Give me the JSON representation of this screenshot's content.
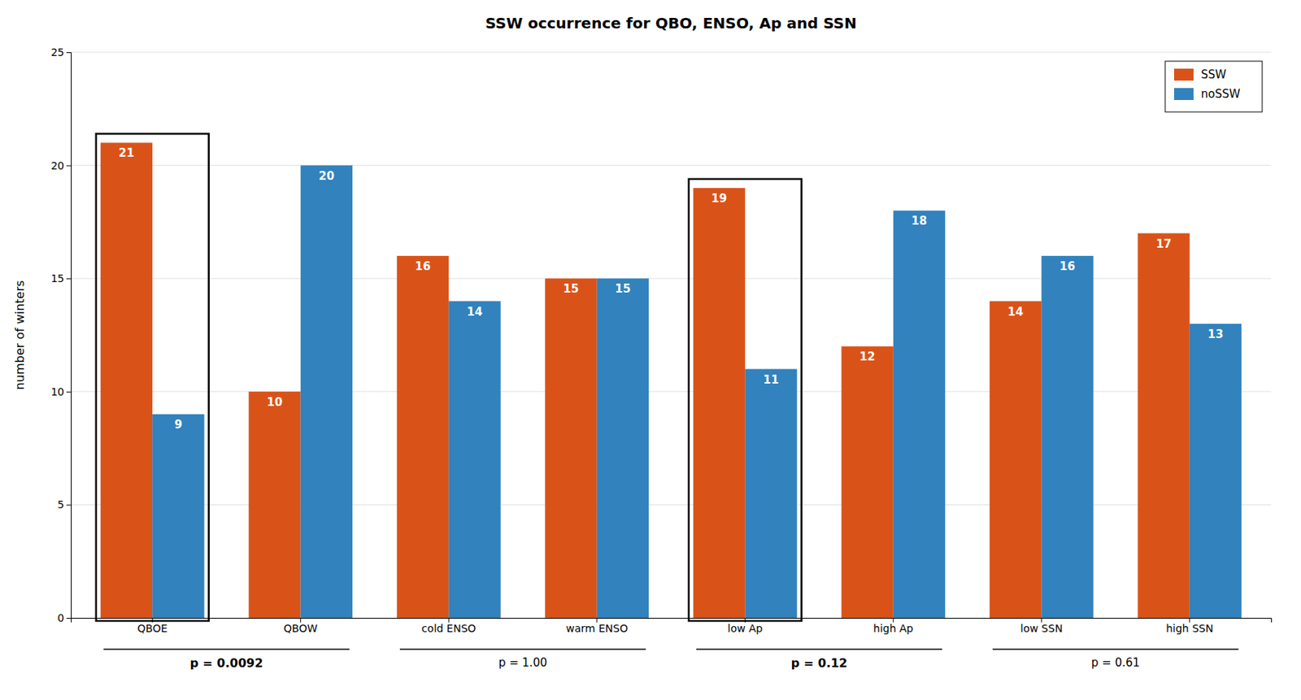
{
  "chart_data": {
    "type": "bar",
    "title": "SSW occurrence for QBO, ENSO, Ap and SSN",
    "ylabel": "number of winters",
    "categories": [
      "QBOE",
      "QBOW",
      "cold ENSO",
      "warm ENSO",
      "low Ap",
      "high Ap",
      "low SSN",
      "high SSN"
    ],
    "series": [
      {
        "name": "SSW",
        "color": "#d95319",
        "values": [
          21,
          10,
          16,
          15,
          19,
          12,
          14,
          17
        ]
      },
      {
        "name": "noSSW",
        "color": "#3182bd",
        "values": [
          9,
          20,
          14,
          15,
          11,
          18,
          16,
          13
        ]
      }
    ],
    "ylim": [
      0,
      25
    ],
    "yticks": [
      0,
      5,
      10,
      15,
      20,
      25
    ],
    "grid": true,
    "legend": "upper right",
    "data_labels": true,
    "annotations": [
      {
        "text": "p = 0.0092",
        "categories": [
          "QBOE",
          "QBOW"
        ],
        "highlight": "QBOE"
      },
      {
        "text": "p = 1.00",
        "categories": [
          "cold ENSO",
          "warm ENSO"
        ]
      },
      {
        "text": "p = 0.12",
        "categories": [
          "low Ap",
          "high Ap"
        ],
        "highlight": "low Ap"
      },
      {
        "text": "p = 0.61",
        "categories": [
          "low SSN",
          "high SSN"
        ]
      }
    ]
  }
}
